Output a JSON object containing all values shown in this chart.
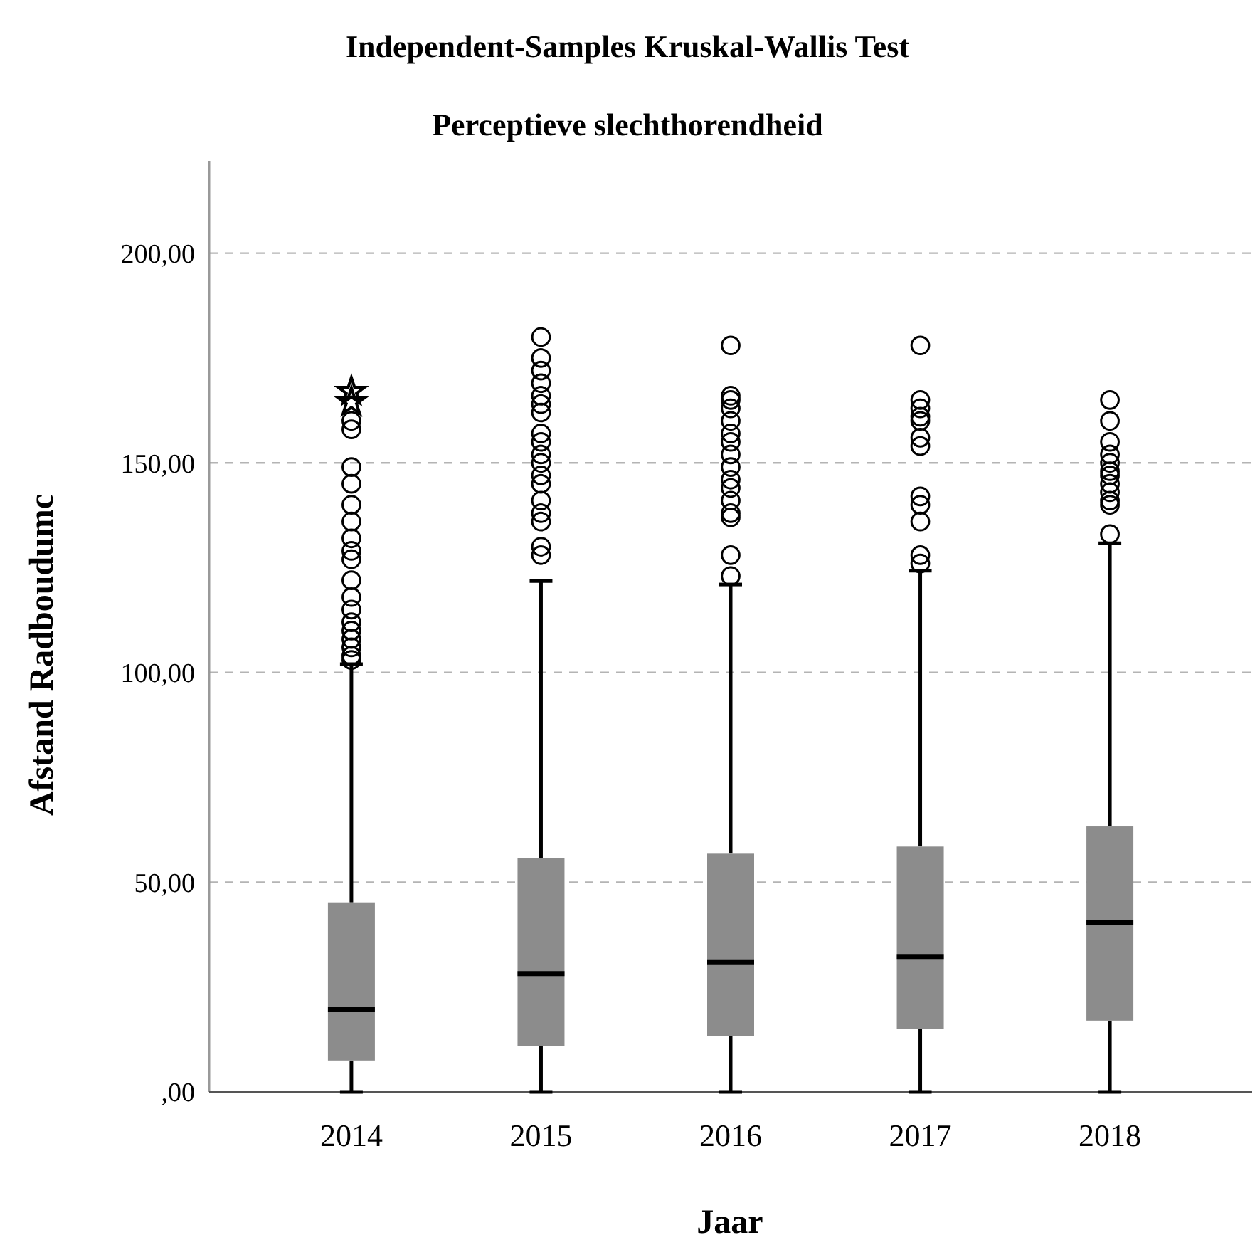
{
  "chart_data": {
    "type": "box",
    "title": "Independent-Samples Kruskal-Wallis Test",
    "subtitle": "Perceptieve slechthorendheid",
    "xlabel": "Jaar",
    "ylabel": "Afstand Radboudumc",
    "categories": [
      "2014",
      "2015",
      "2016",
      "2017",
      "2018"
    ],
    "boxes": [
      {
        "low": 0,
        "q1": 7.5,
        "median": 19.7,
        "q3": 45.2,
        "high": 102,
        "outliers": [
          160,
          158,
          149,
          145,
          140,
          136,
          132,
          129,
          127,
          122,
          118,
          115,
          112,
          110,
          108,
          106,
          104,
          103
        ]
      },
      {
        "low": 0,
        "q1": 10.9,
        "median": 28.2,
        "q3": 55.8,
        "high": 121.8,
        "outliers": [
          180,
          175,
          172,
          169,
          166,
          164,
          162,
          157,
          155,
          152,
          150,
          147,
          145,
          141,
          138,
          136,
          130,
          128
        ]
      },
      {
        "low": 0,
        "q1": 13.3,
        "median": 31,
        "q3": 56.8,
        "high": 121,
        "outliers": [
          178,
          166,
          165,
          163,
          160,
          157,
          155,
          152,
          149,
          146,
          144,
          141,
          138,
          137,
          128,
          123
        ]
      },
      {
        "low": 0,
        "q1": 15,
        "median": 32.3,
        "q3": 58.5,
        "high": 124.3,
        "outliers": [
          178,
          165,
          163,
          161,
          160,
          156,
          154,
          142,
          140,
          136,
          128,
          126
        ]
      },
      {
        "low": 0,
        "q1": 17,
        "median": 40.5,
        "q3": 63.3,
        "high": 130.8,
        "outliers": [
          165,
          160,
          155,
          152,
          150,
          148,
          147,
          145,
          143,
          141,
          140,
          133
        ]
      }
    ],
    "series": [
      {
        "type": "scatter",
        "values": [
          167,
          null,
          null,
          null,
          null
        ],
        "marker": "star",
        "color": "#000000"
      },
      {
        "type": "scatter",
        "values": [
          164.5,
          null,
          null,
          null,
          null
        ],
        "marker": "star",
        "color": "#000000"
      }
    ],
    "color": "#8c8c8c",
    "marker": "circle",
    "ylim": [
      0,
      222
    ],
    "yticks": [
      {
        "value": 0,
        "label": ",00"
      },
      {
        "value": 50,
        "label": "50,00"
      },
      {
        "value": 100,
        "label": "100,00"
      },
      {
        "value": 150,
        "label": "150,00"
      },
      {
        "value": 200,
        "label": "200,00"
      }
    ],
    "grid": "y"
  }
}
